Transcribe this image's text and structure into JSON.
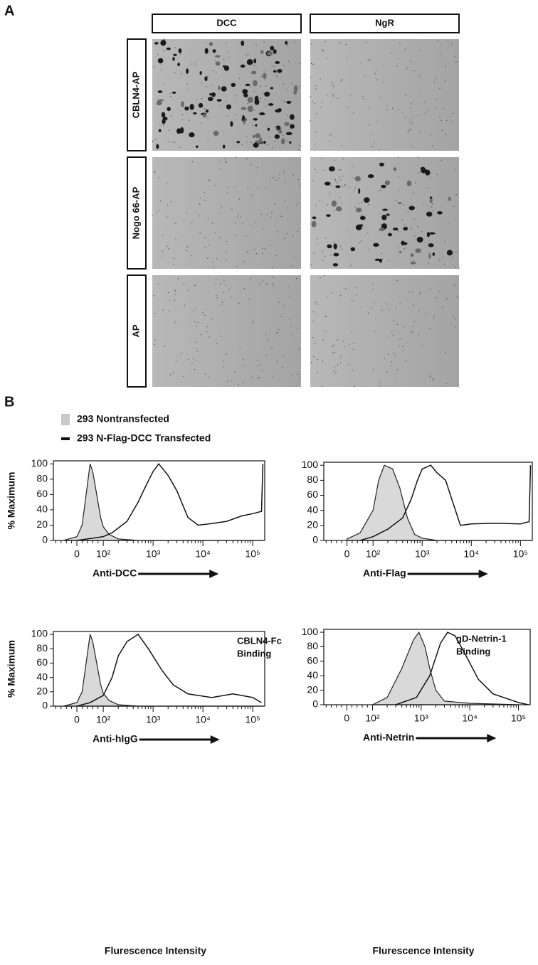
{
  "panel_a": {
    "letter": "A",
    "columns": [
      "DCC",
      "NgR"
    ],
    "rows": [
      "CBLN4-AP",
      "Nogo 66-AP",
      "AP"
    ]
  },
  "panel_b": {
    "letter": "B",
    "legend": [
      {
        "name": "293 Nontransfected",
        "color": "#c8c8c8"
      },
      {
        "name": "293 N-Flag-DCC Transfected",
        "color": "#111111"
      }
    ]
  },
  "chart_data": [
    {
      "type": "histogram-overlay",
      "ylabel": "% Maximum",
      "xlabel": "Anti-DCC",
      "ylim": [
        0,
        104
      ],
      "yticks": [
        0,
        20,
        40,
        60,
        80,
        100
      ],
      "xlim": [
        -89,
        174000
      ],
      "xticks": [
        0,
        {
          "value": 100,
          "label": "10²"
        },
        {
          "value": 1000,
          "label": "10³"
        },
        {
          "value": 10000,
          "label": "10⁴"
        },
        {
          "value": 100000,
          "label": "10⁵"
        }
      ],
      "series": [
        {
          "color": "#d9d9d9",
          "x": [
            -50,
            0,
            20,
            35,
            50,
            60,
            75,
            90,
            100,
            130,
            200,
            500,
            160000
          ],
          "values": [
            0,
            5,
            20,
            60,
            100,
            90,
            60,
            30,
            18,
            8,
            2,
            0,
            0
          ]
        },
        {
          "color": "#111111",
          "x": [
            0,
            100,
            150,
            300,
            500,
            700,
            1000,
            1300,
            2000,
            3000,
            5000,
            8000,
            15000,
            30000,
            60000,
            100000,
            150000,
            160000
          ],
          "values": [
            0,
            5,
            10,
            25,
            50,
            70,
            90,
            100,
            85,
            65,
            30,
            20,
            22,
            25,
            32,
            35,
            38,
            100
          ]
        }
      ]
    },
    {
      "type": "histogram-overlay",
      "xlabel": "Anti-Flag",
      "ylim": [
        0,
        104
      ],
      "yticks": [
        0,
        20,
        40,
        60,
        80,
        100
      ],
      "xlim": [
        -89,
        174000
      ],
      "xticks": [
        0,
        {
          "value": 100,
          "label": "10²"
        },
        {
          "value": 1000,
          "label": "10³"
        },
        {
          "value": 10000,
          "label": "10⁴"
        },
        {
          "value": 100000,
          "label": "10⁵"
        }
      ],
      "series": [
        {
          "color": "#d9d9d9",
          "x": [
            0,
            50,
            100,
            130,
            170,
            250,
            350,
            500,
            700,
            1000,
            2000,
            160000
          ],
          "values": [
            2,
            10,
            40,
            80,
            100,
            95,
            70,
            30,
            8,
            3,
            0,
            0
          ]
        },
        {
          "color": "#111111",
          "x": [
            50,
            100,
            200,
            400,
            600,
            800,
            1000,
            1500,
            2000,
            3000,
            4000,
            6000,
            10000,
            30000,
            100000,
            150000,
            160000
          ],
          "values": [
            0,
            5,
            15,
            30,
            55,
            80,
            95,
            100,
            90,
            80,
            55,
            20,
            22,
            23,
            22,
            25,
            100
          ]
        }
      ]
    },
    {
      "type": "histogram-overlay",
      "ylabel": "% Maximum",
      "xlabel": "Anti-hIgG",
      "xtitle": "Flurescence Intensity",
      "annotation": [
        "CBLN4-Fc",
        "Binding"
      ],
      "ylim": [
        0,
        104
      ],
      "yticks": [
        0,
        20,
        40,
        60,
        80,
        100
      ],
      "xlim": [
        -89,
        174000
      ],
      "xticks": [
        0,
        {
          "value": 100,
          "label": "10²"
        },
        {
          "value": 1000,
          "label": "10³"
        },
        {
          "value": 10000,
          "label": "10⁴"
        },
        {
          "value": 100000,
          "label": "10⁵"
        }
      ],
      "series": [
        {
          "color": "#d9d9d9",
          "x": [
            -50,
            0,
            20,
            35,
            50,
            60,
            75,
            90,
            100,
            130,
            200,
            500,
            160000
          ],
          "values": [
            0,
            5,
            20,
            60,
            100,
            90,
            60,
            30,
            18,
            8,
            2,
            0,
            0
          ]
        },
        {
          "color": "#111111",
          "x": [
            0,
            50,
            100,
            150,
            200,
            300,
            500,
            800,
            1500,
            2500,
            5000,
            15000,
            40000,
            100000,
            150000
          ],
          "values": [
            0,
            5,
            15,
            40,
            70,
            90,
            100,
            80,
            50,
            30,
            17,
            12,
            17,
            12,
            5
          ]
        }
      ]
    },
    {
      "type": "histogram-overlay",
      "xlabel": "Anti-Netrin",
      "xtitle": "Flurescence Intensity",
      "annotation": [
        "gD-Netrin-1",
        "Binding"
      ],
      "ylim": [
        0,
        104
      ],
      "yticks": [
        0,
        20,
        40,
        60,
        80,
        100
      ],
      "xlim": [
        -89,
        174000
      ],
      "xticks": [
        0,
        {
          "value": 100,
          "label": "10²"
        },
        {
          "value": 1000,
          "label": "10³"
        },
        {
          "value": 10000,
          "label": "10⁴"
        },
        {
          "value": 100000,
          "label": "10⁵"
        }
      ],
      "series": [
        {
          "color": "#d9d9d9",
          "x": [
            100,
            200,
            400,
            700,
            900,
            1200,
            1500,
            2000,
            3000,
            10000,
            100000
          ],
          "values": [
            0,
            10,
            50,
            90,
            100,
            80,
            50,
            20,
            5,
            2,
            0
          ]
        },
        {
          "color": "#111111",
          "x": [
            300,
            800,
            1500,
            2500,
            3500,
            5000,
            8000,
            15000,
            30000,
            100000,
            160000
          ],
          "values": [
            0,
            10,
            40,
            85,
            100,
            95,
            70,
            35,
            15,
            3,
            0
          ]
        }
      ]
    }
  ]
}
